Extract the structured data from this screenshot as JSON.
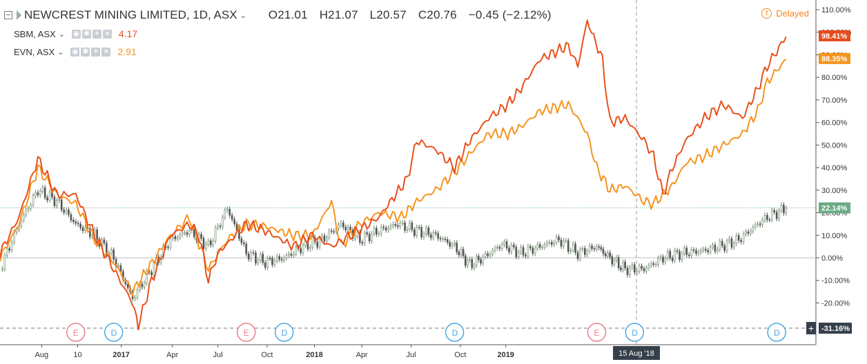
{
  "header": {
    "main_symbol": "NEWCREST MINING LIMITED, 1D, ASX",
    "ohlc": {
      "open": "O21.01",
      "high": "H21.07",
      "low": "L20.57",
      "close": "C20.76",
      "change": "−0.45 (−2.12%)"
    },
    "delayed_label": "Delayed",
    "compare": [
      {
        "name": "SBM, ASX",
        "value": "4.17",
        "color": "#e8501c"
      },
      {
        "name": "EVN, ASX",
        "value": "2.91",
        "color": "#f5941e"
      }
    ]
  },
  "colors": {
    "sbm": "#e8501c",
    "evn": "#f5941e",
    "ncm_up": "#6a8a6a",
    "ncm_down": "#555555",
    "badge_sbm": "#e84a1a",
    "badge_evn": "#f5941e",
    "badge_ncm": "#6aaa85",
    "badge_low": "#36404a",
    "event_e": "#e8808a",
    "event_d": "#4aa8e0"
  },
  "chart_data": {
    "type": "line",
    "y_unit": "%",
    "ylim": [
      -31.16,
      110
    ],
    "y_ticks": [
      "110.00%",
      "100.00%",
      "90.00%",
      "80.00%",
      "70.00%",
      "60.00%",
      "50.00%",
      "40.00%",
      "30.00%",
      "20.00%",
      "10.00%",
      "0.00%",
      "-10.00%",
      "-20.00%"
    ],
    "x_tick_labels": [
      "Aug",
      "10",
      "2017",
      "Apr",
      "Jul",
      "Oct",
      "2018",
      "Apr",
      "Jul",
      "15 Aug '18",
      "Oct",
      "2019"
    ],
    "crosshair_x_label": "15 Aug '18",
    "series": [
      {
        "name": "SBM, ASX",
        "style": "line",
        "last_label": "98.41%",
        "points": [
          [
            0,
            2
          ],
          [
            10,
            18
          ],
          [
            20,
            44
          ],
          [
            30,
            28
          ],
          [
            40,
            28
          ],
          [
            50,
            10
          ],
          [
            60,
            -5
          ],
          [
            70,
            -20
          ],
          [
            73,
            -30
          ],
          [
            80,
            -10
          ],
          [
            90,
            10
          ],
          [
            100,
            15
          ],
          [
            105,
            10
          ],
          [
            110,
            -10
          ],
          [
            115,
            2
          ],
          [
            130,
            15
          ],
          [
            140,
            12
          ],
          [
            155,
            5
          ],
          [
            165,
            10
          ],
          [
            175,
            5
          ],
          [
            185,
            10
          ],
          [
            195,
            15
          ],
          [
            200,
            18
          ],
          [
            215,
            35
          ],
          [
            220,
            52
          ],
          [
            230,
            48
          ],
          [
            240,
            40
          ],
          [
            248,
            52
          ],
          [
            258,
            62
          ],
          [
            268,
            68
          ],
          [
            275,
            75
          ],
          [
            285,
            88
          ],
          [
            300,
            94
          ],
          [
            305,
            85
          ],
          [
            310,
            105
          ],
          [
            318,
            88
          ],
          [
            322,
            60
          ],
          [
            330,
            62
          ],
          [
            340,
            52
          ],
          [
            345,
            45
          ],
          [
            350,
            28
          ],
          [
            355,
            40
          ],
          [
            362,
            52
          ],
          [
            372,
            62
          ],
          [
            382,
            68
          ],
          [
            392,
            62
          ],
          [
            400,
            75
          ],
          [
            405,
            85
          ],
          [
            415,
            98
          ]
        ]
      },
      {
        "name": "EVN, ASX",
        "style": "line",
        "last_label": "88.35%",
        "points": [
          [
            0,
            0
          ],
          [
            10,
            15
          ],
          [
            20,
            40
          ],
          [
            30,
            28
          ],
          [
            40,
            24
          ],
          [
            50,
            8
          ],
          [
            60,
            -2
          ],
          [
            70,
            -15
          ],
          [
            78,
            -5
          ],
          [
            90,
            10
          ],
          [
            100,
            18
          ],
          [
            110,
            -5
          ],
          [
            120,
            8
          ],
          [
            130,
            15
          ],
          [
            140,
            14
          ],
          [
            155,
            10
          ],
          [
            165,
            10
          ],
          [
            175,
            25
          ],
          [
            180,
            5
          ],
          [
            190,
            15
          ],
          [
            200,
            20
          ],
          [
            212,
            18
          ],
          [
            220,
            25
          ],
          [
            230,
            30
          ],
          [
            240,
            38
          ],
          [
            250,
            48
          ],
          [
            258,
            55
          ],
          [
            268,
            55
          ],
          [
            275,
            58
          ],
          [
            285,
            65
          ],
          [
            300,
            68
          ],
          [
            305,
            62
          ],
          [
            310,
            55
          ],
          [
            315,
            40
          ],
          [
            322,
            30
          ],
          [
            330,
            32
          ],
          [
            340,
            25
          ],
          [
            345,
            24
          ],
          [
            350,
            28
          ],
          [
            355,
            32
          ],
          [
            362,
            42
          ],
          [
            372,
            45
          ],
          [
            382,
            50
          ],
          [
            392,
            55
          ],
          [
            400,
            65
          ],
          [
            405,
            78
          ],
          [
            415,
            88
          ]
        ]
      },
      {
        "name": "NEWCREST MINING LIMITED",
        "style": "candles",
        "last_label": "22.14%",
        "points": [
          [
            0,
            -5
          ],
          [
            10,
            15
          ],
          [
            20,
            30
          ],
          [
            30,
            25
          ],
          [
            40,
            15
          ],
          [
            50,
            10
          ],
          [
            60,
            0
          ],
          [
            70,
            -18
          ],
          [
            80,
            -5
          ],
          [
            90,
            8
          ],
          [
            100,
            12
          ],
          [
            110,
            5
          ],
          [
            120,
            22
          ],
          [
            130,
            2
          ],
          [
            140,
            -2
          ],
          [
            150,
            0
          ],
          [
            160,
            5
          ],
          [
            170,
            8
          ],
          [
            180,
            15
          ],
          [
            190,
            8
          ],
          [
            200,
            12
          ],
          [
            210,
            15
          ],
          [
            220,
            12
          ],
          [
            230,
            10
          ],
          [
            240,
            5
          ],
          [
            248,
            -3
          ],
          [
            255,
            0
          ],
          [
            265,
            6
          ],
          [
            275,
            2
          ],
          [
            285,
            5
          ],
          [
            295,
            8
          ],
          [
            305,
            2
          ],
          [
            315,
            5
          ],
          [
            322,
            0
          ],
          [
            330,
            -5
          ],
          [
            340,
            -5
          ],
          [
            350,
            0
          ],
          [
            360,
            2
          ],
          [
            370,
            3
          ],
          [
            380,
            5
          ],
          [
            390,
            8
          ],
          [
            400,
            15
          ],
          [
            405,
            18
          ],
          [
            415,
            22
          ]
        ]
      }
    ],
    "reference_lines": [
      {
        "value": 0,
        "style": "solid"
      },
      {
        "value": 22.14,
        "style": "dotted"
      },
      {
        "value": -31.16,
        "style": "dashed",
        "label": "-31.16%"
      }
    ],
    "events": [
      {
        "type": "E",
        "x": 40
      },
      {
        "type": "D",
        "x": 60
      },
      {
        "type": "E",
        "x": 130
      },
      {
        "type": "D",
        "x": 150
      },
      {
        "type": "D",
        "x": 240
      },
      {
        "type": "E",
        "x": 315
      },
      {
        "type": "D",
        "x": 335
      },
      {
        "type": "D",
        "x": 410
      }
    ]
  }
}
